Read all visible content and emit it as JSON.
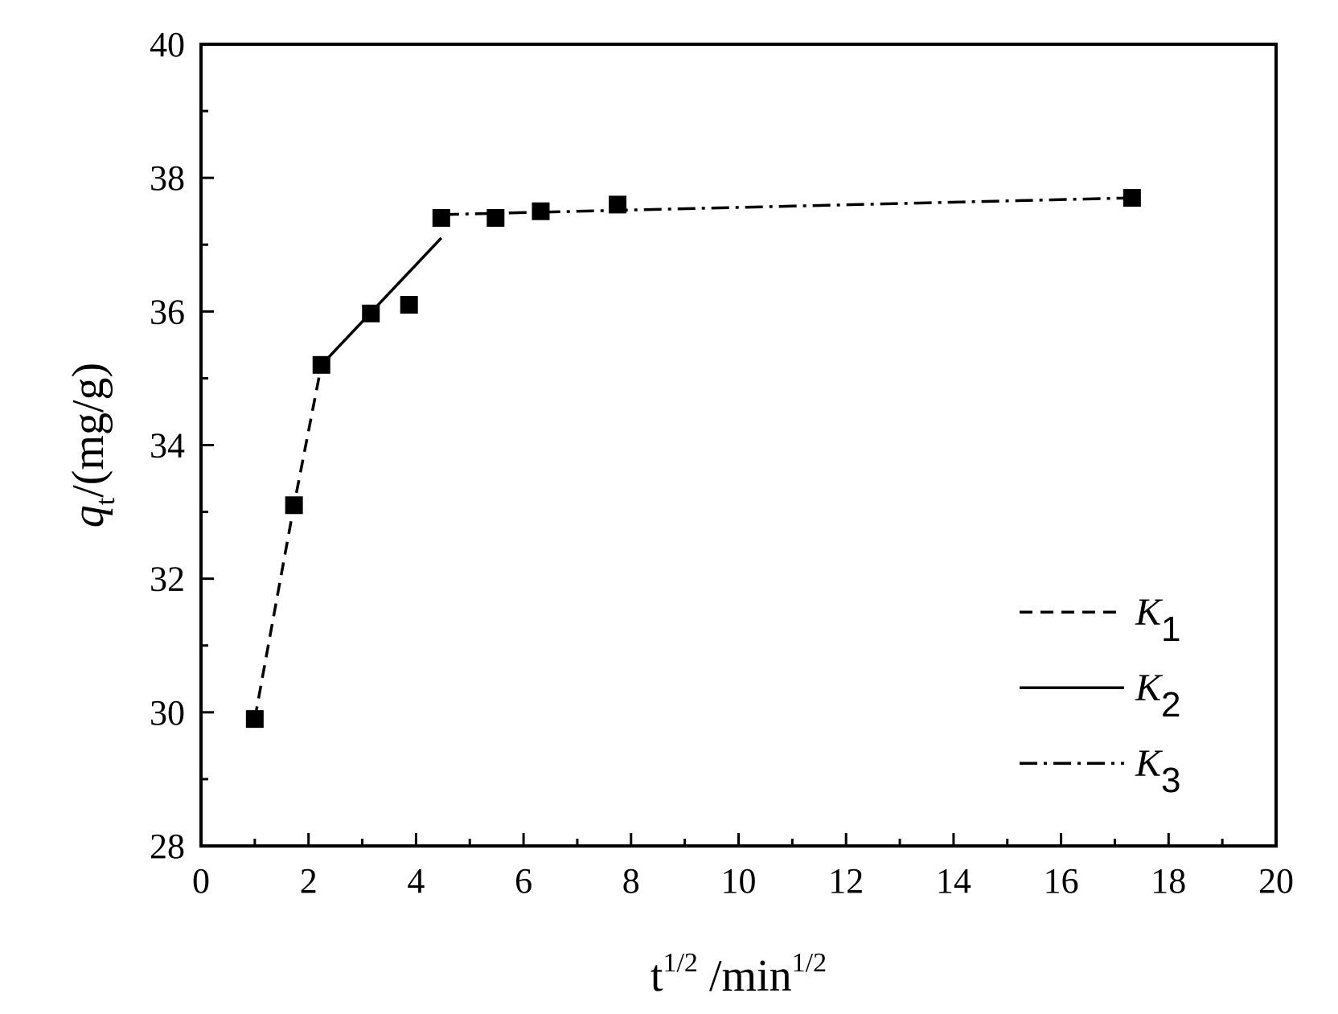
{
  "chart_data": {
    "type": "scatter",
    "xlim": [
      0,
      20
    ],
    "ylim": [
      28,
      40
    ],
    "x_ticks": [
      0,
      2,
      4,
      6,
      8,
      10,
      12,
      14,
      16,
      18,
      20
    ],
    "y_ticks": [
      28,
      30,
      32,
      34,
      36,
      38,
      40
    ],
    "x_tick_labels": [
      "0",
      "2",
      "4",
      "6",
      "8",
      "10",
      "12",
      "14",
      "16",
      "18",
      "20"
    ],
    "y_tick_labels": [
      "28",
      "30",
      "32",
      "34",
      "36",
      "38",
      "40"
    ],
    "xlabel": {
      "base": "t",
      "sup1": "1/2",
      "mid": " /min",
      "sup2": "1/2"
    },
    "ylabel": {
      "var": "q",
      "sub": "t",
      "rest": "/(mg/g)"
    },
    "grid": false,
    "legend_position": "bottom-right",
    "points": {
      "x": [
        1.0,
        1.73,
        2.24,
        3.16,
        3.87,
        4.47,
        5.48,
        6.32,
        7.75,
        17.32
      ],
      "y": [
        29.9,
        33.1,
        35.2,
        35.97,
        36.1,
        37.4,
        37.4,
        37.5,
        37.6,
        37.7
      ]
    },
    "series": [
      {
        "name": "K1",
        "label_var": "K",
        "label_sub": "1",
        "style": "dashed",
        "x": [
          1.0,
          1.73,
          2.24
        ],
        "y": [
          29.9,
          33.1,
          35.2
        ]
      },
      {
        "name": "K2",
        "label_var": "K",
        "label_sub": "2",
        "style": "solid",
        "x": [
          2.24,
          4.47
        ],
        "y": [
          35.2,
          37.1
        ]
      },
      {
        "name": "K3",
        "label_var": "K",
        "label_sub": "3",
        "style": "dashdot",
        "x": [
          4.47,
          17.32
        ],
        "y": [
          37.45,
          37.7
        ]
      }
    ]
  }
}
